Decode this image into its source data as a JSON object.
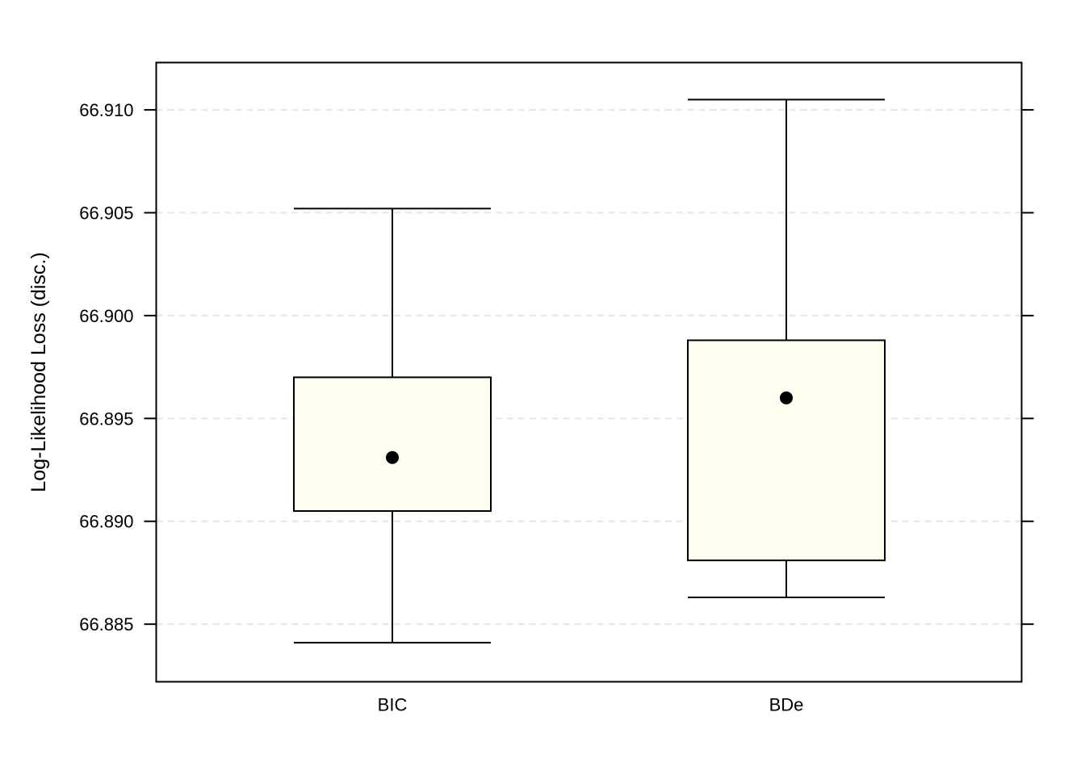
{
  "chart_data": {
    "type": "box",
    "title": "",
    "xlabel": "",
    "ylabel": "Log-Likelihood Loss (disc.)",
    "ylim": [
      66.8822,
      66.9123
    ],
    "yticks": [
      66.885,
      66.89,
      66.895,
      66.9,
      66.905,
      66.91
    ],
    "ytick_labels": [
      "66.885",
      "66.890",
      "66.895",
      "66.900",
      "66.905",
      "66.910"
    ],
    "grid": true,
    "categories": [
      "BIC",
      "BDe"
    ],
    "boxes": [
      {
        "label": "BIC",
        "whisker_low": 66.8841,
        "q1": 66.8905,
        "median": 66.8931,
        "q3": 66.897,
        "whisker_high": 66.9052
      },
      {
        "label": "BDe",
        "whisker_low": 66.8863,
        "q1": 66.8881,
        "median": 66.896,
        "q3": 66.8988,
        "whisker_high": 66.9105
      }
    ],
    "box_fill": "#FFFFF0",
    "grid_color": "#e6e6e6",
    "line_color": "#000000"
  }
}
